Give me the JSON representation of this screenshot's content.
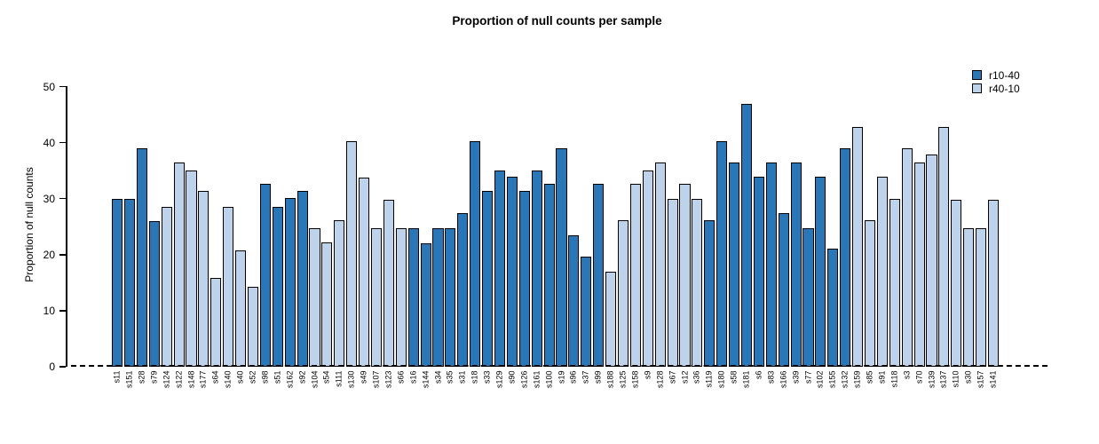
{
  "title": "Proportion of null counts per sample",
  "legend": [
    {
      "label": "r10-40",
      "series": "r10-40"
    },
    {
      "label": "r40-10",
      "series": "r40-10"
    }
  ],
  "colors": {
    "r10-40": "#2878b9",
    "r40-10": "#bdd3ec",
    "bar_border": "#000000",
    "axis": "#000000"
  },
  "chart_data": {
    "type": "bar",
    "title": "Proportion of null counts per sample",
    "xlabel": "",
    "ylabel": "Proportion of null counts",
    "ylim": [
      0,
      50
    ],
    "yticks": [
      0,
      10,
      20,
      30,
      40,
      50
    ],
    "grid": false,
    "legend_position": "top-right",
    "zero_line_style": "dashed",
    "series_names": [
      "r10-40",
      "r40-10"
    ],
    "bars": [
      {
        "label": "s11",
        "series": "r10-40",
        "value": 29.9
      },
      {
        "label": "s151",
        "series": "r10-40",
        "value": 29.9
      },
      {
        "label": "s28",
        "series": "r10-40",
        "value": 39.0
      },
      {
        "label": "s79",
        "series": "r10-40",
        "value": 26.0
      },
      {
        "label": "s124",
        "series": "r40-10",
        "value": 28.6
      },
      {
        "label": "s122",
        "series": "r40-10",
        "value": 36.5
      },
      {
        "label": "s148",
        "series": "r40-10",
        "value": 35.1
      },
      {
        "label": "s177",
        "series": "r40-10",
        "value": 31.3
      },
      {
        "label": "s64",
        "series": "r40-10",
        "value": 15.8
      },
      {
        "label": "s140",
        "series": "r40-10",
        "value": 28.6
      },
      {
        "label": "s40",
        "series": "r40-10",
        "value": 20.8
      },
      {
        "label": "s52",
        "series": "r40-10",
        "value": 14.3
      },
      {
        "label": "s98",
        "series": "r10-40",
        "value": 32.6
      },
      {
        "label": "s51",
        "series": "r10-40",
        "value": 28.6
      },
      {
        "label": "s162",
        "series": "r10-40",
        "value": 30.1
      },
      {
        "label": "s92",
        "series": "r10-40",
        "value": 31.3
      },
      {
        "label": "s104",
        "series": "r40-10",
        "value": 24.7
      },
      {
        "label": "s54",
        "series": "r40-10",
        "value": 22.2
      },
      {
        "label": "s111",
        "series": "r40-10",
        "value": 26.1
      },
      {
        "label": "s130",
        "series": "r40-10",
        "value": 40.2
      },
      {
        "label": "s49",
        "series": "r40-10",
        "value": 33.8
      },
      {
        "label": "s107",
        "series": "r40-10",
        "value": 24.7
      },
      {
        "label": "s123",
        "series": "r40-10",
        "value": 29.8
      },
      {
        "label": "s66",
        "series": "r40-10",
        "value": 24.7
      },
      {
        "label": "s16",
        "series": "r10-40",
        "value": 24.7
      },
      {
        "label": "s144",
        "series": "r10-40",
        "value": 22.1
      },
      {
        "label": "s34",
        "series": "r10-40",
        "value": 24.7
      },
      {
        "label": "s35",
        "series": "r10-40",
        "value": 24.7
      },
      {
        "label": "s31",
        "series": "r10-40",
        "value": 27.4
      },
      {
        "label": "s18",
        "series": "r10-40",
        "value": 40.3
      },
      {
        "label": "s33",
        "series": "r10-40",
        "value": 31.3
      },
      {
        "label": "s129",
        "series": "r10-40",
        "value": 35.1
      },
      {
        "label": "s90",
        "series": "r10-40",
        "value": 33.9
      },
      {
        "label": "s126",
        "series": "r10-40",
        "value": 31.3
      },
      {
        "label": "s161",
        "series": "r10-40",
        "value": 35.1
      },
      {
        "label": "s100",
        "series": "r10-40",
        "value": 32.6
      },
      {
        "label": "s19",
        "series": "r10-40",
        "value": 39.0
      },
      {
        "label": "s96",
        "series": "r10-40",
        "value": 23.4
      },
      {
        "label": "s37",
        "series": "r10-40",
        "value": 19.6
      },
      {
        "label": "s99",
        "series": "r10-40",
        "value": 32.6
      },
      {
        "label": "s188",
        "series": "r40-10",
        "value": 16.9
      },
      {
        "label": "s125",
        "series": "r40-10",
        "value": 26.1
      },
      {
        "label": "s158",
        "series": "r40-10",
        "value": 32.6
      },
      {
        "label": "s9",
        "series": "r40-10",
        "value": 35.1
      },
      {
        "label": "s128",
        "series": "r40-10",
        "value": 36.5
      },
      {
        "label": "s67",
        "series": "r40-10",
        "value": 29.9
      },
      {
        "label": "s12",
        "series": "r40-10",
        "value": 32.6
      },
      {
        "label": "s36",
        "series": "r40-10",
        "value": 29.9
      },
      {
        "label": "s119",
        "series": "r10-40",
        "value": 26.1
      },
      {
        "label": "s180",
        "series": "r10-40",
        "value": 40.3
      },
      {
        "label": "s58",
        "series": "r10-40",
        "value": 36.5
      },
      {
        "label": "s181",
        "series": "r10-40",
        "value": 46.9
      },
      {
        "label": "s6",
        "series": "r10-40",
        "value": 33.9
      },
      {
        "label": "s83",
        "series": "r10-40",
        "value": 36.5
      },
      {
        "label": "s166",
        "series": "r10-40",
        "value": 27.4
      },
      {
        "label": "s39",
        "series": "r10-40",
        "value": 36.5
      },
      {
        "label": "s77",
        "series": "r10-40",
        "value": 24.7
      },
      {
        "label": "s102",
        "series": "r10-40",
        "value": 33.9
      },
      {
        "label": "s155",
        "series": "r10-40",
        "value": 21.0
      },
      {
        "label": "s132",
        "series": "r10-40",
        "value": 39.0
      },
      {
        "label": "s159",
        "series": "r40-10",
        "value": 42.8
      },
      {
        "label": "s85",
        "series": "r40-10",
        "value": 26.1
      },
      {
        "label": "s91",
        "series": "r40-10",
        "value": 33.9
      },
      {
        "label": "s118",
        "series": "r40-10",
        "value": 29.9
      },
      {
        "label": "s3",
        "series": "r40-10",
        "value": 39.0
      },
      {
        "label": "s70",
        "series": "r40-10",
        "value": 36.5
      },
      {
        "label": "s139",
        "series": "r40-10",
        "value": 37.8
      },
      {
        "label": "s137",
        "series": "r40-10",
        "value": 42.8
      },
      {
        "label": "s110",
        "series": "r40-10",
        "value": 29.8
      },
      {
        "label": "s30",
        "series": "r40-10",
        "value": 24.7
      },
      {
        "label": "s157",
        "series": "r40-10",
        "value": 24.7
      },
      {
        "label": "s141",
        "series": "r40-10",
        "value": 29.8
      }
    ]
  }
}
